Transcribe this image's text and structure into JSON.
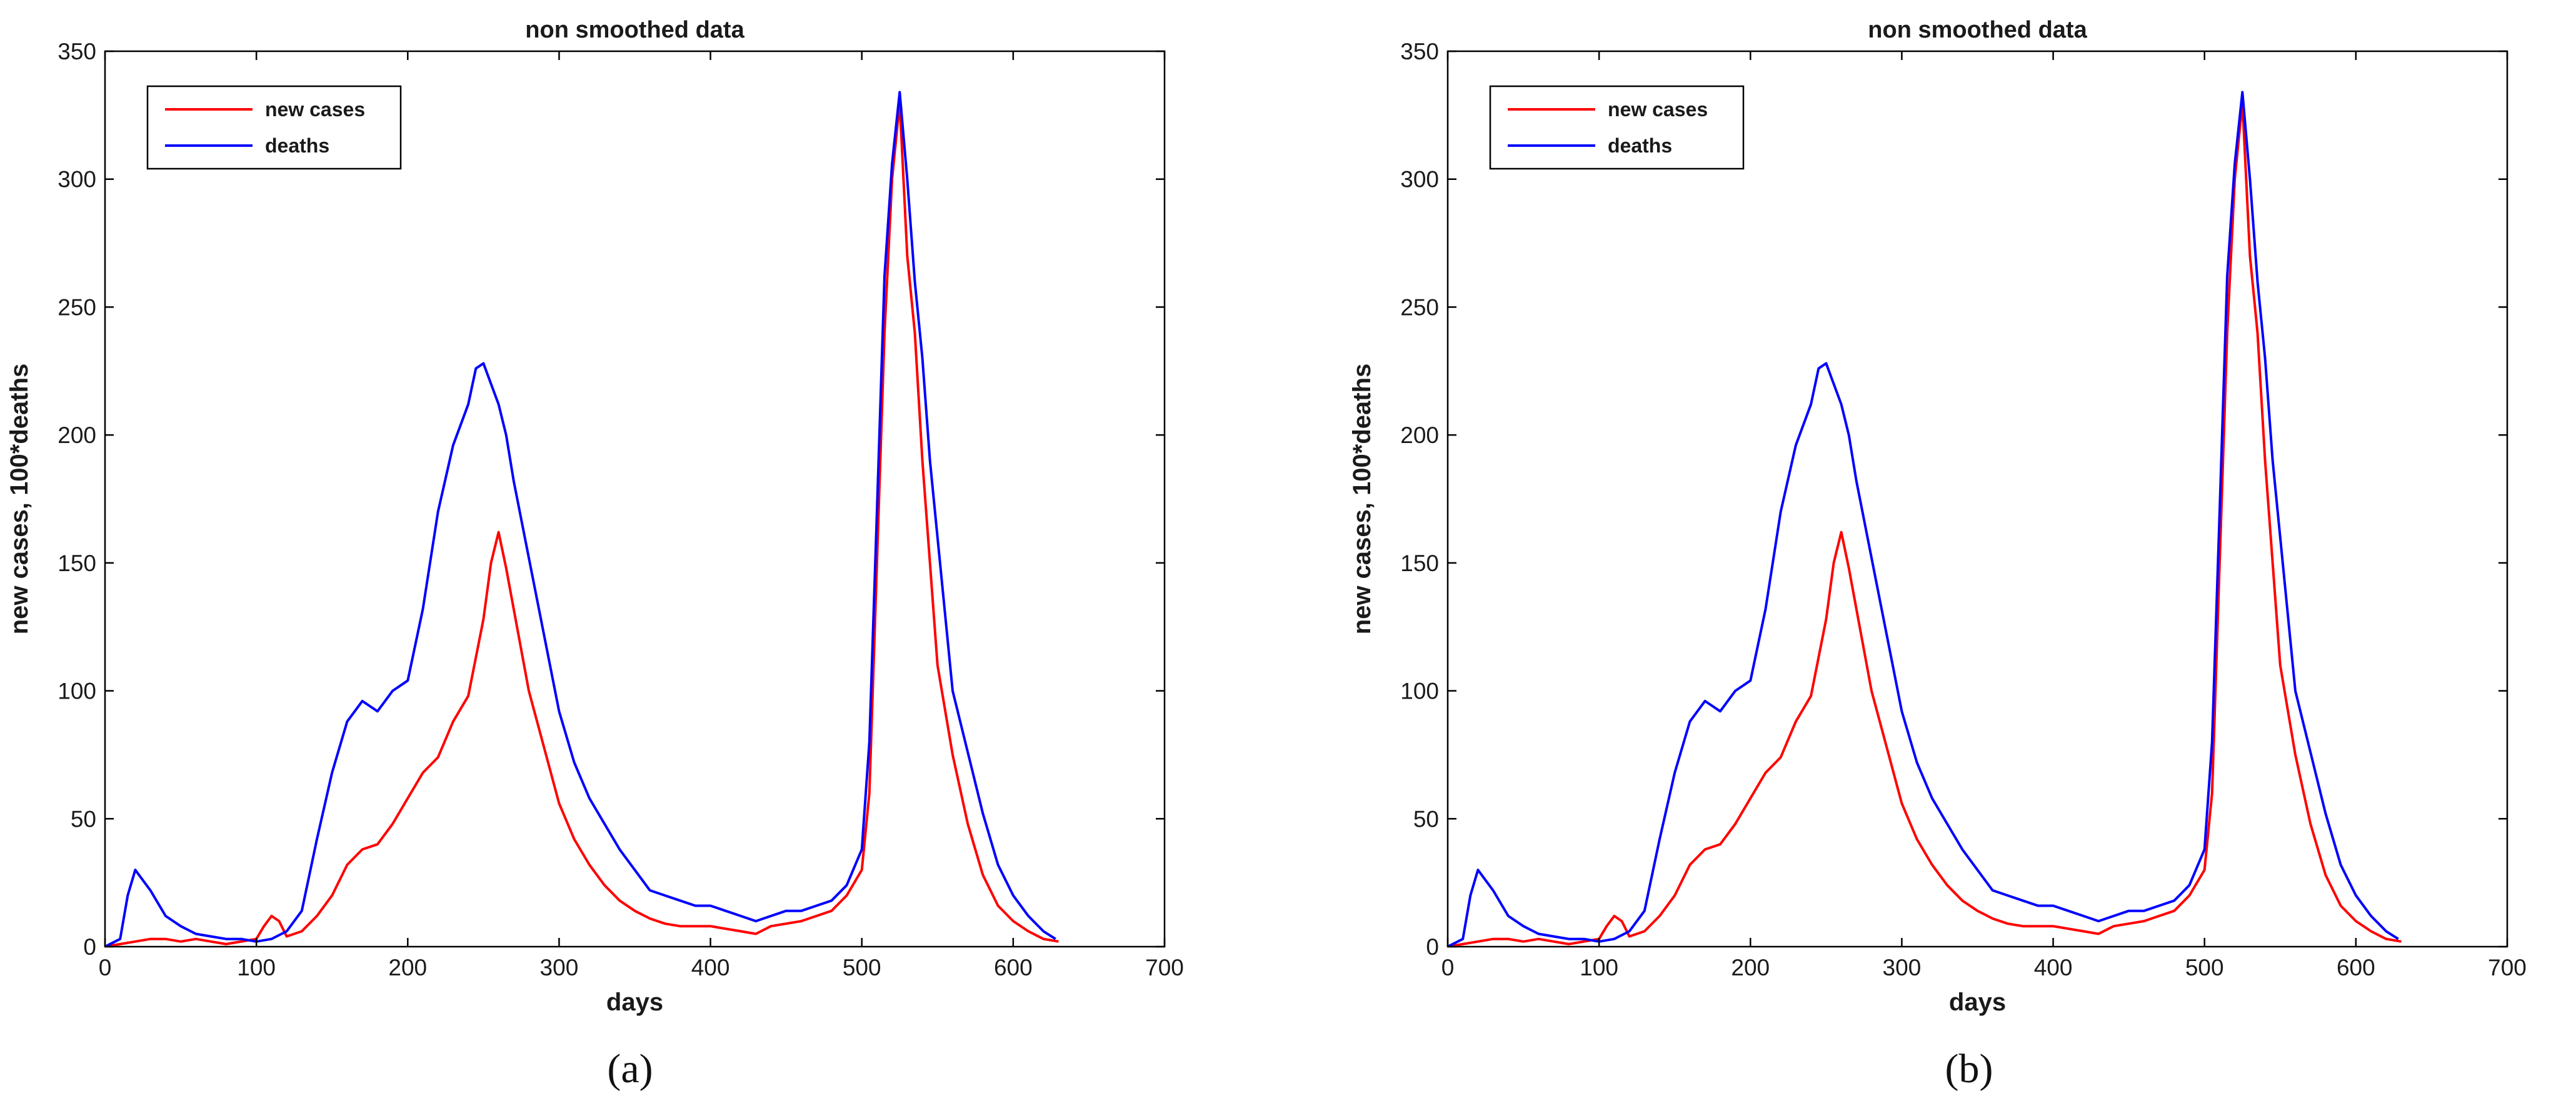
{
  "chart_data": [
    {
      "type": "line",
      "panel_label": "a",
      "title": "non smoothed data",
      "xlabel": "days",
      "ylabel": "new cases, 100*deaths",
      "xlim": [
        0,
        700
      ],
      "ylim": [
        0,
        350
      ],
      "xticks": [
        0,
        100,
        200,
        300,
        400,
        500,
        600,
        700
      ],
      "yticks": [
        0,
        50,
        100,
        150,
        200,
        250,
        300,
        350
      ],
      "legend": "top-left",
      "series": [
        {
          "name": "new cases",
          "color": "#ff0000",
          "x": [
            0,
            10,
            20,
            30,
            40,
            50,
            60,
            70,
            80,
            90,
            100,
            105,
            110,
            115,
            120,
            130,
            140,
            150,
            160,
            170,
            180,
            190,
            200,
            210,
            220,
            230,
            240,
            250,
            255,
            260,
            265,
            270,
            280,
            290,
            300,
            310,
            320,
            330,
            340,
            350,
            360,
            370,
            380,
            390,
            400,
            410,
            420,
            430,
            440,
            450,
            460,
            470,
            480,
            490,
            500,
            505,
            510,
            515,
            520,
            525,
            530,
            535,
            540,
            545,
            550,
            560,
            570,
            580,
            590,
            600,
            610,
            620,
            630
          ],
          "y": [
            0,
            1,
            2,
            3,
            3,
            2,
            3,
            2,
            1,
            2,
            3,
            8,
            12,
            10,
            4,
            6,
            12,
            20,
            32,
            38,
            40,
            48,
            58,
            68,
            74,
            88,
            98,
            128,
            150,
            162,
            148,
            132,
            100,
            78,
            56,
            42,
            32,
            24,
            18,
            14,
            11,
            9,
            8,
            8,
            8,
            7,
            6,
            5,
            8,
            9,
            10,
            12,
            14,
            20,
            30,
            60,
            150,
            240,
            300,
            330,
            270,
            240,
            190,
            150,
            110,
            75,
            48,
            28,
            16,
            10,
            6,
            3,
            2
          ]
        },
        {
          "name": "deaths",
          "color": "#0000ff",
          "x": [
            0,
            10,
            15,
            20,
            30,
            40,
            50,
            60,
            70,
            80,
            90,
            100,
            110,
            120,
            130,
            140,
            150,
            160,
            170,
            180,
            190,
            200,
            210,
            220,
            230,
            240,
            245,
            250,
            255,
            260,
            265,
            270,
            280,
            290,
            300,
            310,
            320,
            330,
            340,
            350,
            360,
            370,
            380,
            390,
            400,
            410,
            420,
            430,
            440,
            450,
            460,
            470,
            480,
            490,
            500,
            505,
            510,
            515,
            520,
            525,
            530,
            535,
            540,
            545,
            550,
            555,
            560,
            570,
            580,
            590,
            600,
            610,
            620,
            628
          ],
          "y": [
            0,
            3,
            20,
            30,
            22,
            12,
            8,
            5,
            4,
            3,
            3,
            2,
            3,
            6,
            14,
            42,
            68,
            88,
            96,
            92,
            100,
            104,
            132,
            170,
            196,
            212,
            226,
            228,
            220,
            212,
            200,
            182,
            152,
            122,
            92,
            72,
            58,
            48,
            38,
            30,
            22,
            20,
            18,
            16,
            16,
            14,
            12,
            10,
            12,
            14,
            14,
            16,
            18,
            24,
            38,
            80,
            170,
            262,
            306,
            334,
            300,
            260,
            230,
            190,
            160,
            130,
            100,
            76,
            52,
            32,
            20,
            12,
            6,
            3
          ]
        }
      ]
    },
    {
      "type": "line",
      "panel_label": "b",
      "title": "non smoothed data",
      "xlabel": "days",
      "ylabel": "new cases, 100*deaths",
      "xlim": [
        0,
        700
      ],
      "ylim": [
        0,
        350
      ],
      "xticks": [
        0,
        100,
        200,
        300,
        400,
        500,
        600,
        700
      ],
      "yticks": [
        0,
        50,
        100,
        150,
        200,
        250,
        300,
        350
      ],
      "legend": "top-left",
      "series": [
        {
          "name": "new cases",
          "color": "#ff0000",
          "x": [
            0,
            10,
            20,
            30,
            40,
            50,
            60,
            70,
            80,
            90,
            100,
            105,
            110,
            115,
            120,
            130,
            140,
            150,
            160,
            170,
            180,
            190,
            200,
            210,
            220,
            230,
            240,
            250,
            255,
            260,
            265,
            270,
            280,
            290,
            300,
            310,
            320,
            330,
            340,
            350,
            360,
            370,
            380,
            390,
            400,
            410,
            420,
            430,
            440,
            450,
            460,
            470,
            480,
            490,
            500,
            505,
            510,
            515,
            520,
            525,
            530,
            535,
            540,
            545,
            550,
            560,
            570,
            580,
            590,
            600,
            610,
            620,
            630
          ],
          "y": [
            0,
            1,
            2,
            3,
            3,
            2,
            3,
            2,
            1,
            2,
            3,
            8,
            12,
            10,
            4,
            6,
            12,
            20,
            32,
            38,
            40,
            48,
            58,
            68,
            74,
            88,
            98,
            128,
            150,
            162,
            148,
            132,
            100,
            78,
            56,
            42,
            32,
            24,
            18,
            14,
            11,
            9,
            8,
            8,
            8,
            7,
            6,
            5,
            8,
            9,
            10,
            12,
            14,
            20,
            30,
            60,
            150,
            240,
            300,
            330,
            270,
            240,
            190,
            150,
            110,
            75,
            48,
            28,
            16,
            10,
            6,
            3,
            2
          ]
        },
        {
          "name": "deaths",
          "color": "#0000ff",
          "x": [
            0,
            10,
            15,
            20,
            30,
            40,
            50,
            60,
            70,
            80,
            90,
            100,
            110,
            120,
            130,
            140,
            150,
            160,
            170,
            180,
            190,
            200,
            210,
            220,
            230,
            240,
            245,
            250,
            255,
            260,
            265,
            270,
            280,
            290,
            300,
            310,
            320,
            330,
            340,
            350,
            360,
            370,
            380,
            390,
            400,
            410,
            420,
            430,
            440,
            450,
            460,
            470,
            480,
            490,
            500,
            505,
            510,
            515,
            520,
            525,
            530,
            535,
            540,
            545,
            550,
            555,
            560,
            570,
            580,
            590,
            600,
            610,
            620,
            628
          ],
          "y": [
            0,
            3,
            20,
            30,
            22,
            12,
            8,
            5,
            4,
            3,
            3,
            2,
            3,
            6,
            14,
            42,
            68,
            88,
            96,
            92,
            100,
            104,
            132,
            170,
            196,
            212,
            226,
            228,
            220,
            212,
            200,
            182,
            152,
            122,
            92,
            72,
            58,
            48,
            38,
            30,
            22,
            20,
            18,
            16,
            16,
            14,
            12,
            10,
            12,
            14,
            14,
            16,
            18,
            24,
            38,
            80,
            170,
            262,
            306,
            334,
            300,
            260,
            230,
            190,
            160,
            130,
            100,
            76,
            52,
            32,
            20,
            12,
            6,
            3
          ]
        }
      ]
    }
  ],
  "captions": [
    "(a)",
    "(b)"
  ]
}
